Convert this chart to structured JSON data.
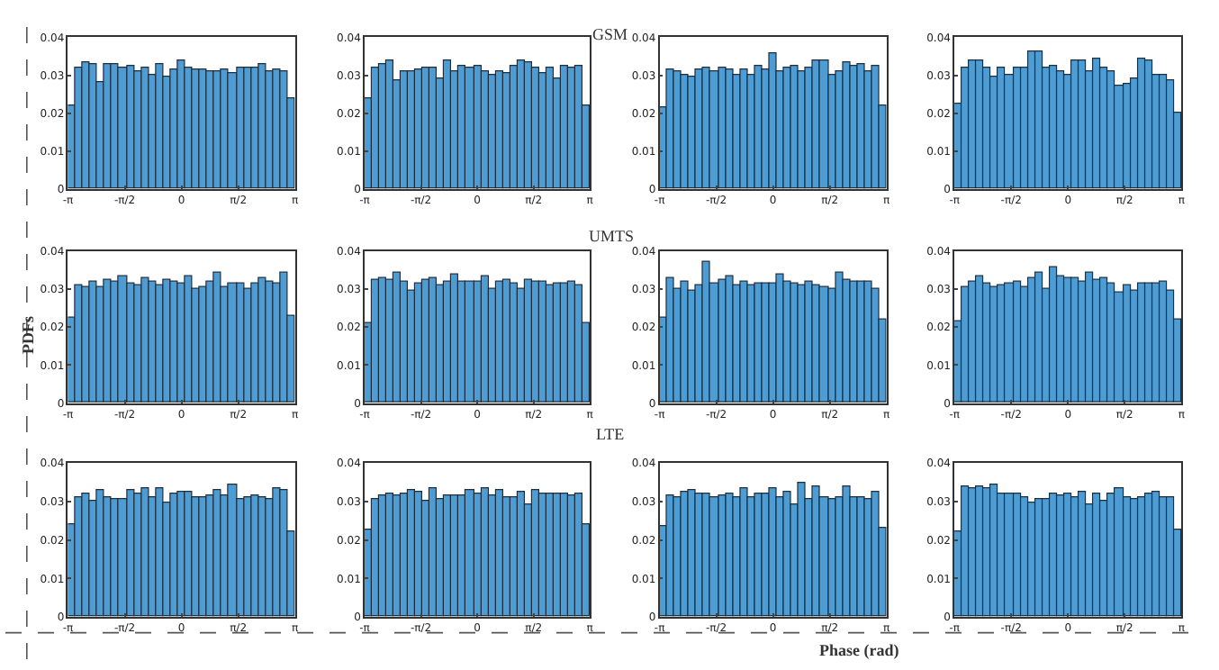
{
  "chart_data": [
    {
      "type": "other",
      "title": "GSM"
    },
    {
      "type": "histogram",
      "bins": [
        -3.142,
        -2.939,
        -2.736,
        -2.534,
        -2.331,
        -2.128,
        -1.926,
        -1.723,
        -1.52,
        -1.318,
        -1.115,
        -0.912,
        -0.709,
        -0.507,
        -0.304,
        -0.101,
        0.101,
        0.304,
        0.507,
        0.709,
        0.912,
        1.115,
        1.318,
        1.52,
        1.723,
        1.926,
        2.128,
        2.331,
        2.534,
        2.736,
        2.939,
        3.142
      ],
      "values": [
        0.022,
        0.032,
        0.0335,
        0.033,
        0.028,
        0.033,
        0.033,
        0.032,
        0.0325,
        0.031,
        0.032,
        0.03,
        0.033,
        0.0295,
        0.0315,
        0.034,
        0.032,
        0.0315,
        0.0315,
        0.031,
        0.031,
        0.0315,
        0.0305,
        0.032,
        0.032,
        0.032,
        0.033,
        0.031,
        0.0315,
        0.031,
        0.024
      ],
      "color": "#4d9dd4",
      "xlim": [
        -3.1416,
        3.1416
      ],
      "xticks": [
        {
          "value": -3.1416,
          "label": "-π"
        },
        {
          "value": -1.5708,
          "label": "-π/2"
        },
        0,
        {
          "value": 1.5708,
          "label": "π/2"
        },
        {
          "value": 3.1416,
          "label": "π"
        }
      ],
      "ylim": [
        0,
        0.04
      ],
      "yticks": [
        0,
        0.01,
        0.02,
        0.03,
        0.04
      ]
    },
    {
      "type": "histogram",
      "bins": [
        -3.142,
        -2.939,
        -2.736,
        -2.534,
        -2.331,
        -2.128,
        -1.926,
        -1.723,
        -1.52,
        -1.318,
        -1.115,
        -0.912,
        -0.709,
        -0.507,
        -0.304,
        -0.101,
        0.101,
        0.304,
        0.507,
        0.709,
        0.912,
        1.115,
        1.318,
        1.52,
        1.723,
        1.926,
        2.128,
        2.331,
        2.534,
        2.736,
        2.939,
        3.142
      ],
      "values": [
        0.024,
        0.032,
        0.033,
        0.034,
        0.0285,
        0.031,
        0.031,
        0.0315,
        0.032,
        0.032,
        0.029,
        0.034,
        0.031,
        0.0325,
        0.032,
        0.0325,
        0.031,
        0.03,
        0.031,
        0.0305,
        0.0325,
        0.034,
        0.0335,
        0.032,
        0.0305,
        0.032,
        0.029,
        0.0325,
        0.032,
        0.0325,
        0.022
      ],
      "color": "#4d9dd4",
      "xlim": [
        -3.1416,
        3.1416
      ],
      "xticks": [
        {
          "value": -3.1416,
          "label": "-π"
        },
        {
          "value": -1.5708,
          "label": "-π/2"
        },
        0,
        {
          "value": 1.5708,
          "label": "π/2"
        },
        {
          "value": 3.1416,
          "label": "π"
        }
      ],
      "ylim": [
        0,
        0.04
      ],
      "yticks": [
        0,
        0.01,
        0.02,
        0.03,
        0.04
      ]
    },
    {
      "type": "histogram",
      "bins": [
        -3.142,
        -2.939,
        -2.736,
        -2.534,
        -2.331,
        -2.128,
        -1.926,
        -1.723,
        -1.52,
        -1.318,
        -1.115,
        -0.912,
        -0.709,
        -0.507,
        -0.304,
        -0.101,
        0.101,
        0.304,
        0.507,
        0.709,
        0.912,
        1.115,
        1.318,
        1.52,
        1.723,
        1.926,
        2.128,
        2.331,
        2.534,
        2.736,
        2.939,
        3.142
      ],
      "values": [
        0.0215,
        0.0315,
        0.031,
        0.03,
        0.0295,
        0.0315,
        0.032,
        0.031,
        0.032,
        0.0315,
        0.03,
        0.0315,
        0.03,
        0.0325,
        0.0315,
        0.0355,
        0.031,
        0.032,
        0.0325,
        0.031,
        0.032,
        0.034,
        0.034,
        0.03,
        0.031,
        0.0335,
        0.0325,
        0.033,
        0.031,
        0.0325,
        0.022
      ],
      "color": "#4d9dd4",
      "xlim": [
        -3.1416,
        3.1416
      ],
      "xticks": [
        {
          "value": -3.1416,
          "label": "-π"
        },
        {
          "value": -1.5708,
          "label": "-π/2"
        },
        0,
        {
          "value": 1.5708,
          "label": "π/2"
        },
        {
          "value": 3.1416,
          "label": "π"
        }
      ],
      "ylim": [
        0,
        0.04
      ],
      "yticks": [
        0,
        0.01,
        0.02,
        0.03,
        0.04
      ]
    },
    {
      "type": "histogram",
      "bins": [
        -3.142,
        -2.939,
        -2.736,
        -2.534,
        -2.331,
        -2.128,
        -1.926,
        -1.723,
        -1.52,
        -1.318,
        -1.115,
        -0.912,
        -0.709,
        -0.507,
        -0.304,
        -0.101,
        0.101,
        0.304,
        0.507,
        0.709,
        0.912,
        1.115,
        1.318,
        1.52,
        1.723,
        1.926,
        2.128,
        2.331,
        2.534,
        2.736,
        2.939,
        3.142
      ],
      "values": [
        0.0225,
        0.032,
        0.034,
        0.034,
        0.032,
        0.0295,
        0.032,
        0.03,
        0.032,
        0.032,
        0.036,
        0.036,
        0.032,
        0.0325,
        0.031,
        0.03,
        0.034,
        0.034,
        0.031,
        0.0345,
        0.032,
        0.031,
        0.027,
        0.0275,
        0.029,
        0.0345,
        0.034,
        0.03,
        0.03,
        0.0285,
        0.02
      ],
      "color": "#4d9dd4",
      "xlim": [
        -3.1416,
        3.1416
      ],
      "xticks": [
        {
          "value": -3.1416,
          "label": "-π"
        },
        {
          "value": -1.5708,
          "label": "-π/2"
        },
        0,
        {
          "value": 1.5708,
          "label": "π/2"
        },
        {
          "value": 3.1416,
          "label": "π"
        }
      ],
      "ylim": [
        0,
        0.04
      ],
      "yticks": [
        0,
        0.01,
        0.02,
        0.03,
        0.04
      ]
    },
    {
      "type": "other",
      "title": "UMTS"
    },
    {
      "type": "histogram",
      "bins": [
        -3.142,
        -2.939,
        -2.736,
        -2.534,
        -2.331,
        -2.128,
        -1.926,
        -1.723,
        -1.52,
        -1.318,
        -1.115,
        -0.912,
        -0.709,
        -0.507,
        -0.304,
        -0.101,
        0.101,
        0.304,
        0.507,
        0.709,
        0.912,
        1.115,
        1.318,
        1.52,
        1.723,
        1.926,
        2.128,
        2.331,
        2.534,
        2.736,
        2.939,
        3.142
      ],
      "values": [
        0.0225,
        0.031,
        0.0305,
        0.032,
        0.0305,
        0.0325,
        0.032,
        0.0335,
        0.0315,
        0.031,
        0.033,
        0.032,
        0.031,
        0.0325,
        0.032,
        0.0315,
        0.0335,
        0.03,
        0.0305,
        0.032,
        0.0345,
        0.0305,
        0.0315,
        0.0315,
        0.03,
        0.0315,
        0.033,
        0.032,
        0.0315,
        0.0345,
        0.023
      ],
      "color": "#4d9dd4",
      "xlim": [
        -3.1416,
        3.1416
      ],
      "xticks": [
        {
          "value": -3.1416,
          "label": "-π"
        },
        {
          "value": -1.5708,
          "label": "-π/2"
        },
        0,
        {
          "value": 1.5708,
          "label": "π/2"
        },
        {
          "value": 3.1416,
          "label": "π"
        }
      ],
      "ylim": [
        0,
        0.04
      ],
      "yticks": [
        0,
        0.01,
        0.02,
        0.03,
        0.04
      ]
    },
    {
      "type": "histogram",
      "bins": [
        -3.142,
        -2.939,
        -2.736,
        -2.534,
        -2.331,
        -2.128,
        -1.926,
        -1.723,
        -1.52,
        -1.318,
        -1.115,
        -0.912,
        -0.709,
        -0.507,
        -0.304,
        -0.101,
        0.101,
        0.304,
        0.507,
        0.709,
        0.912,
        1.115,
        1.318,
        1.52,
        1.723,
        1.926,
        2.128,
        2.331,
        2.534,
        2.736,
        2.939,
        3.142
      ],
      "values": [
        0.021,
        0.0325,
        0.033,
        0.0325,
        0.0345,
        0.032,
        0.0295,
        0.0315,
        0.0325,
        0.033,
        0.031,
        0.032,
        0.034,
        0.032,
        0.032,
        0.032,
        0.0335,
        0.03,
        0.032,
        0.0325,
        0.0315,
        0.03,
        0.0325,
        0.032,
        0.032,
        0.031,
        0.0315,
        0.0315,
        0.032,
        0.031,
        0.021
      ],
      "color": "#4d9dd4",
      "xlim": [
        -3.1416,
        3.1416
      ],
      "xticks": [
        {
          "value": -3.1416,
          "label": "-π"
        },
        {
          "value": -1.5708,
          "label": "-π/2"
        },
        0,
        {
          "value": 1.5708,
          "label": "π/2"
        },
        {
          "value": 3.1416,
          "label": "π"
        }
      ],
      "ylim": [
        0,
        0.04
      ],
      "yticks": [
        0,
        0.01,
        0.02,
        0.03,
        0.04
      ]
    },
    {
      "type": "histogram",
      "bins": [
        -3.142,
        -2.939,
        -2.736,
        -2.534,
        -2.331,
        -2.128,
        -1.926,
        -1.723,
        -1.52,
        -1.318,
        -1.115,
        -0.912,
        -0.709,
        -0.507,
        -0.304,
        -0.101,
        0.101,
        0.304,
        0.507,
        0.709,
        0.912,
        1.115,
        1.318,
        1.52,
        1.723,
        1.926,
        2.128,
        2.331,
        2.534,
        2.736,
        2.939,
        3.142
      ],
      "values": [
        0.0225,
        0.033,
        0.03,
        0.032,
        0.0295,
        0.031,
        0.037,
        0.0315,
        0.0325,
        0.0335,
        0.031,
        0.032,
        0.031,
        0.0315,
        0.0315,
        0.0315,
        0.034,
        0.032,
        0.0315,
        0.031,
        0.032,
        0.031,
        0.0305,
        0.03,
        0.0345,
        0.0325,
        0.032,
        0.032,
        0.032,
        0.03,
        0.022
      ],
      "color": "#4d9dd4",
      "xlim": [
        -3.1416,
        3.1416
      ],
      "xticks": [
        {
          "value": -3.1416,
          "label": "-π"
        },
        {
          "value": -1.5708,
          "label": "-π/2"
        },
        0,
        {
          "value": 1.5708,
          "label": "π/2"
        },
        {
          "value": 3.1416,
          "label": "π"
        }
      ],
      "ylim": [
        0,
        0.04
      ],
      "yticks": [
        0,
        0.01,
        0.02,
        0.03,
        0.04
      ]
    },
    {
      "type": "histogram",
      "bins": [
        -3.142,
        -2.939,
        -2.736,
        -2.534,
        -2.331,
        -2.128,
        -1.926,
        -1.723,
        -1.52,
        -1.318,
        -1.115,
        -0.912,
        -0.709,
        -0.507,
        -0.304,
        -0.101,
        0.101,
        0.304,
        0.507,
        0.709,
        0.912,
        1.115,
        1.318,
        1.52,
        1.723,
        1.926,
        2.128,
        2.331,
        2.534,
        2.736,
        2.939,
        3.142
      ],
      "values": [
        0.0215,
        0.0305,
        0.032,
        0.0335,
        0.0315,
        0.0305,
        0.031,
        0.0315,
        0.032,
        0.0305,
        0.033,
        0.0345,
        0.03,
        0.0355,
        0.0335,
        0.033,
        0.033,
        0.032,
        0.0345,
        0.0325,
        0.033,
        0.0315,
        0.029,
        0.031,
        0.0295,
        0.0315,
        0.0315,
        0.0315,
        0.032,
        0.0295,
        0.022
      ],
      "color": "#4d9dd4",
      "xlim": [
        -3.1416,
        3.1416
      ],
      "xticks": [
        {
          "value": -3.1416,
          "label": "-π"
        },
        {
          "value": -1.5708,
          "label": "-π/2"
        },
        0,
        {
          "value": 1.5708,
          "label": "π/2"
        },
        {
          "value": 3.1416,
          "label": "π"
        }
      ],
      "ylim": [
        0,
        0.04
      ],
      "yticks": [
        0,
        0.01,
        0.02,
        0.03,
        0.04
      ]
    },
    {
      "type": "other",
      "title": "LTE"
    },
    {
      "type": "histogram",
      "bins": [
        -3.142,
        -2.939,
        -2.736,
        -2.534,
        -2.331,
        -2.128,
        -1.926,
        -1.723,
        -1.52,
        -1.318,
        -1.115,
        -0.912,
        -0.709,
        -0.507,
        -0.304,
        -0.101,
        0.101,
        0.304,
        0.507,
        0.709,
        0.912,
        1.115,
        1.318,
        1.52,
        1.723,
        1.926,
        2.128,
        2.331,
        2.534,
        2.736,
        2.939,
        3.142
      ],
      "values": [
        0.024,
        0.031,
        0.032,
        0.03,
        0.033,
        0.031,
        0.0305,
        0.0305,
        0.033,
        0.032,
        0.0335,
        0.031,
        0.0335,
        0.0295,
        0.032,
        0.0325,
        0.0325,
        0.031,
        0.031,
        0.0315,
        0.033,
        0.0315,
        0.0345,
        0.0305,
        0.031,
        0.0315,
        0.031,
        0.0305,
        0.0335,
        0.033,
        0.022
      ],
      "color": "#4d9dd4",
      "xlim": [
        -3.1416,
        3.1416
      ],
      "xticks": [
        {
          "value": -3.1416,
          "label": "-π"
        },
        {
          "value": -1.5708,
          "label": "-π/2"
        },
        0,
        {
          "value": 1.5708,
          "label": "π/2"
        },
        {
          "value": 3.1416,
          "label": "π"
        }
      ],
      "ylim": [
        0,
        0.04
      ],
      "yticks": [
        0,
        0.01,
        0.02,
        0.03,
        0.04
      ]
    },
    {
      "type": "histogram",
      "bins": [
        -3.142,
        -2.939,
        -2.736,
        -2.534,
        -2.331,
        -2.128,
        -1.926,
        -1.723,
        -1.52,
        -1.318,
        -1.115,
        -0.912,
        -0.709,
        -0.507,
        -0.304,
        -0.101,
        0.101,
        0.304,
        0.507,
        0.709,
        0.912,
        1.115,
        1.318,
        1.52,
        1.723,
        1.926,
        2.128,
        2.331,
        2.534,
        2.736,
        2.939,
        3.142
      ],
      "values": [
        0.0225,
        0.0305,
        0.0315,
        0.032,
        0.0315,
        0.032,
        0.033,
        0.0325,
        0.03,
        0.0335,
        0.0305,
        0.0315,
        0.0315,
        0.0315,
        0.033,
        0.032,
        0.0335,
        0.0315,
        0.033,
        0.031,
        0.031,
        0.0325,
        0.029,
        0.033,
        0.032,
        0.032,
        0.032,
        0.032,
        0.0315,
        0.032,
        0.024
      ],
      "color": "#4d9dd4",
      "xlim": [
        -3.1416,
        3.1416
      ],
      "xticks": [
        {
          "value": -3.1416,
          "label": "-π"
        },
        {
          "value": -1.5708,
          "label": "-π/2"
        },
        0,
        {
          "value": 1.5708,
          "label": "π/2"
        },
        {
          "value": 3.1416,
          "label": "π"
        }
      ],
      "ylim": [
        0,
        0.04
      ],
      "yticks": [
        0,
        0.01,
        0.02,
        0.03,
        0.04
      ]
    },
    {
      "type": "histogram",
      "bins": [
        -3.142,
        -2.939,
        -2.736,
        -2.534,
        -2.331,
        -2.128,
        -1.926,
        -1.723,
        -1.52,
        -1.318,
        -1.115,
        -0.912,
        -0.709,
        -0.507,
        -0.304,
        -0.101,
        0.101,
        0.304,
        0.507,
        0.709,
        0.912,
        1.115,
        1.318,
        1.52,
        1.723,
        1.926,
        2.128,
        2.331,
        2.534,
        2.736,
        2.939,
        3.142
      ],
      "values": [
        0.0235,
        0.0315,
        0.031,
        0.0325,
        0.033,
        0.032,
        0.032,
        0.031,
        0.0315,
        0.032,
        0.031,
        0.0335,
        0.031,
        0.032,
        0.032,
        0.0335,
        0.031,
        0.0325,
        0.029,
        0.035,
        0.0305,
        0.034,
        0.031,
        0.0305,
        0.031,
        0.034,
        0.031,
        0.031,
        0.0305,
        0.0325,
        0.023
      ],
      "color": "#4d9dd4",
      "xlim": [
        -3.1416,
        3.1416
      ],
      "xticks": [
        {
          "value": -3.1416,
          "label": "-π"
        },
        {
          "value": -1.5708,
          "label": "-π/2"
        },
        0,
        {
          "value": 1.5708,
          "label": "π/2"
        },
        {
          "value": 3.1416,
          "label": "π"
        }
      ],
      "ylim": [
        0,
        0.04
      ],
      "yticks": [
        0,
        0.01,
        0.02,
        0.03,
        0.04
      ]
    },
    {
      "type": "histogram",
      "bins": [
        -3.142,
        -2.939,
        -2.736,
        -2.534,
        -2.331,
        -2.128,
        -1.926,
        -1.723,
        -1.52,
        -1.318,
        -1.115,
        -0.912,
        -0.709,
        -0.507,
        -0.304,
        -0.101,
        0.101,
        0.304,
        0.507,
        0.709,
        0.912,
        1.115,
        1.318,
        1.52,
        1.723,
        1.926,
        2.128,
        2.331,
        2.534,
        2.736,
        2.939,
        3.142
      ],
      "values": [
        0.022,
        0.034,
        0.0335,
        0.034,
        0.0335,
        0.0345,
        0.032,
        0.032,
        0.032,
        0.031,
        0.0295,
        0.0305,
        0.0305,
        0.032,
        0.0315,
        0.032,
        0.031,
        0.0325,
        0.029,
        0.032,
        0.03,
        0.032,
        0.0335,
        0.031,
        0.0305,
        0.031,
        0.032,
        0.0325,
        0.031,
        0.031,
        0.0225
      ],
      "color": "#4d9dd4",
      "xlim": [
        -3.1416,
        3.1416
      ],
      "xticks": [
        {
          "value": -3.1416,
          "label": "-π"
        },
        {
          "value": -1.5708,
          "label": "-π/2"
        },
        0,
        {
          "value": 1.5708,
          "label": "π/2"
        },
        {
          "value": 3.1416,
          "label": "π"
        }
      ],
      "ylim": [
        0,
        0.04
      ],
      "yticks": [
        0,
        0.01,
        0.02,
        0.03,
        0.04
      ]
    },
    {
      "type": "other",
      "xlabel": "Phase (rad)",
      "ylabel": "PDFs"
    }
  ]
}
